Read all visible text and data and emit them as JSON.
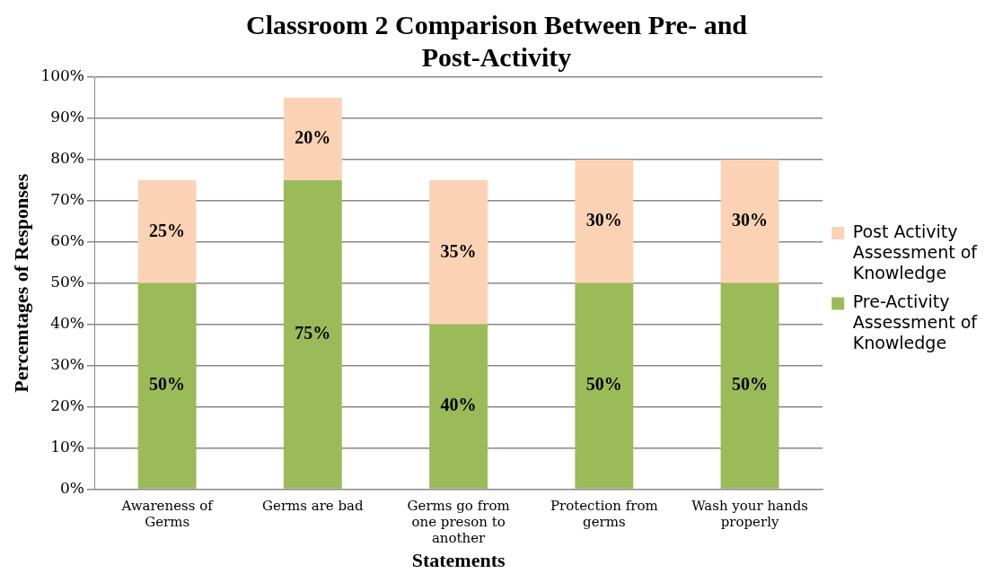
{
  "chart_data": {
    "type": "bar",
    "title": "Classroom 2 Comparison Between Pre- and Post-Activity",
    "xlabel": "Statements",
    "ylabel": "Percemtages of Responses",
    "categories": [
      "Awareness of Germs",
      "Germs are bad",
      "Germs go from one preson to another",
      "Protection from germs",
      "Wash your hands properly"
    ],
    "stacked": true,
    "grid": "y",
    "legend": "right",
    "ylim": [
      0,
      100
    ],
    "yticks": [
      {
        "value": 0,
        "label": "0%"
      },
      {
        "value": 10,
        "label": "10%"
      },
      {
        "value": 20,
        "label": "20%"
      },
      {
        "value": 30,
        "label": "30%"
      },
      {
        "value": 40,
        "label": "40%"
      },
      {
        "value": 50,
        "label": "50%"
      },
      {
        "value": 60,
        "label": "60%"
      },
      {
        "value": 70,
        "label": "70%"
      },
      {
        "value": 80,
        "label": "80%"
      },
      {
        "value": 90,
        "label": "90%"
      },
      {
        "value": 100,
        "label": "100%"
      }
    ],
    "series": [
      {
        "name": "Pre-Activity Assessment of Knowledge",
        "color": "#9bbb59",
        "values": [
          50,
          75,
          40,
          50,
          50
        ],
        "value_labels": [
          "50%",
          "75%",
          "40%",
          "50%",
          "50%"
        ]
      },
      {
        "name": "Post Activity Assessment of Knowledge",
        "color": "#fbd3b4",
        "values": [
          25,
          20,
          35,
          30,
          30
        ],
        "value_labels": [
          "25%",
          "20%",
          "35%",
          "30%",
          "30%"
        ]
      }
    ]
  }
}
